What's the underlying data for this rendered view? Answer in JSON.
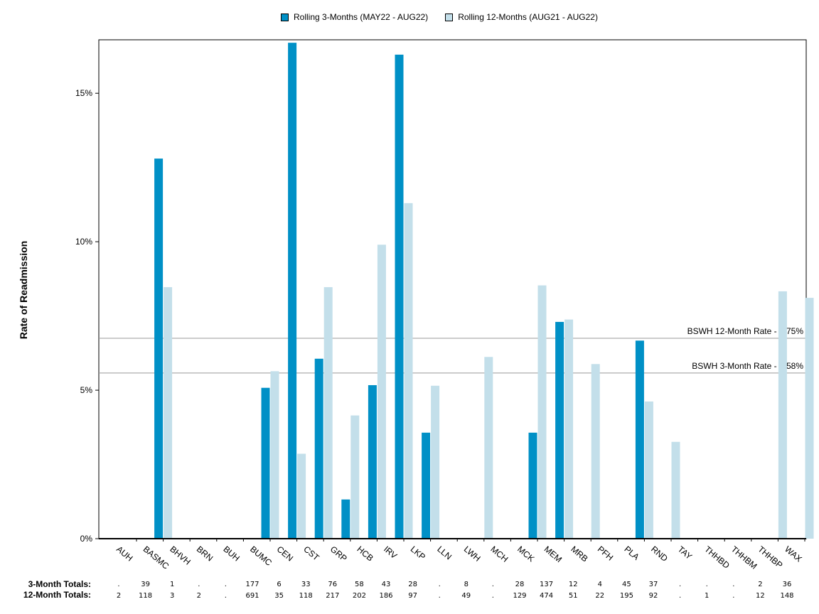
{
  "chart_data": {
    "type": "bar",
    "ylabel": "Rate of Readmission",
    "ylim": [
      0,
      16.8
    ],
    "yticks": [
      0,
      5,
      10,
      15
    ],
    "ytick_labels": [
      "0%",
      "5%",
      "10%",
      "15%"
    ],
    "grid": false,
    "legend_position": "top-center",
    "categories": [
      "AUH",
      "BASMC",
      "BHVH",
      "BRN",
      "BUH",
      "BUMC",
      "CEN",
      "CST",
      "GRP",
      "HCB",
      "IRV",
      "LKP",
      "LLN",
      "LWH",
      "MCH",
      "MCK",
      "MEM",
      "MRB",
      "PFH",
      "PLA",
      "RND",
      "TAY",
      "THHBD",
      "THHBM",
      "THHBP",
      "WAX"
    ],
    "series": [
      {
        "name": "Rolling 3-Months (MAY22 - AUG22)",
        "color": "#0090c6",
        "values": [
          0,
          12.8,
          0,
          0,
          0,
          5.08,
          16.7,
          6.06,
          1.32,
          5.17,
          16.3,
          3.57,
          0,
          0,
          0,
          3.57,
          7.3,
          0,
          0,
          6.67,
          0,
          0,
          0,
          0,
          0,
          0
        ]
      },
      {
        "name": "Rolling 12-Months (AUG21 - AUG22)",
        "color": "#c3dfea",
        "values": [
          0,
          8.47,
          0,
          0,
          0,
          5.64,
          2.86,
          8.47,
          4.15,
          9.9,
          11.3,
          5.15,
          0,
          6.12,
          0,
          8.53,
          7.38,
          5.88,
          0,
          4.62,
          3.26,
          0,
          0,
          0,
          8.33,
          8.11
        ]
      }
    ],
    "reference_lines": [
      {
        "label": "BSWH 12-Month Rate - 6.75%",
        "value": 6.75
      },
      {
        "label": "BSWH  3-Month Rate - 5.58%",
        "value": 5.58
      }
    ],
    "totals": {
      "three_month_label": "3-Month Totals:",
      "twelve_month_label": "12-Month Totals:",
      "three_month": [
        ".",
        "39",
        "1",
        ".",
        ".",
        "177",
        "6",
        "33",
        "76",
        "58",
        "43",
        "28",
        ".",
        "8",
        ".",
        "28",
        "137",
        "12",
        "4",
        "45",
        "37",
        ".",
        ".",
        ".",
        "2",
        "36"
      ],
      "twelve_month": [
        "2",
        "118",
        "3",
        "2",
        ".",
        "691",
        "35",
        "118",
        "217",
        "202",
        "186",
        "97",
        ".",
        "49",
        ".",
        "129",
        "474",
        "51",
        "22",
        "195",
        "92",
        ".",
        "1",
        ".",
        "12",
        "148"
      ]
    }
  }
}
